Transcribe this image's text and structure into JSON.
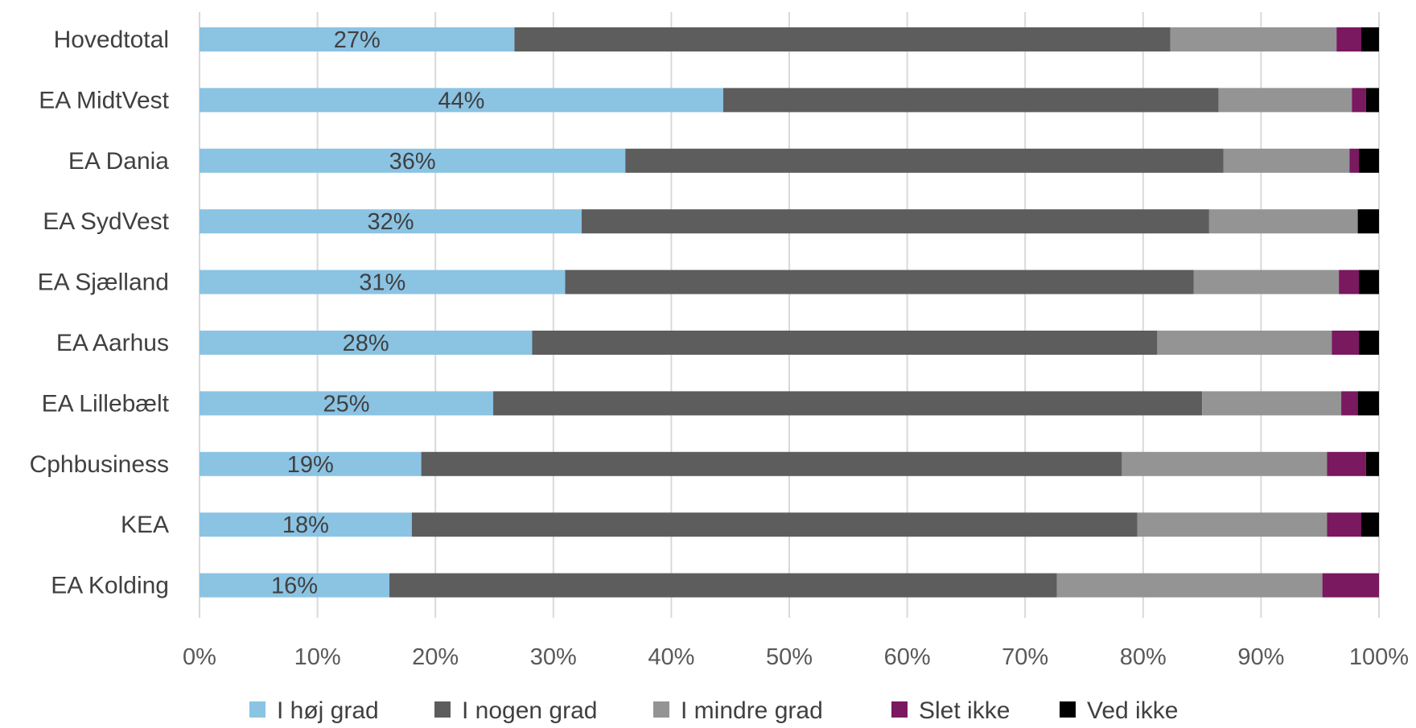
{
  "chart_data": {
    "type": "bar",
    "orientation": "horizontal",
    "stacked": true,
    "percent_stacked": true,
    "categories": [
      "Hovedtotal",
      "EA MidtVest",
      "EA Dania",
      "EA SydVest",
      "EA Sjælland",
      "EA Aarhus",
      "EA Lillebælt",
      "Cphbusiness",
      "KEA",
      "EA Kolding"
    ],
    "series": [
      {
        "name": "I høj grad",
        "color": "#8BC3E3",
        "values": [
          26.7,
          44.4,
          36.1,
          32.4,
          31.0,
          28.2,
          24.9,
          18.8,
          18.0,
          16.1
        ]
      },
      {
        "name": "I nogen grad",
        "color": "#5D5D5D",
        "values": [
          55.6,
          42.0,
          50.7,
          53.2,
          53.3,
          53.0,
          60.1,
          59.4,
          61.5,
          56.6
        ]
      },
      {
        "name": "I mindre grad",
        "color": "#949494",
        "values": [
          14.1,
          11.3,
          10.7,
          12.6,
          12.3,
          14.8,
          11.8,
          17.4,
          16.1,
          22.5
        ]
      },
      {
        "name": "Slet ikke",
        "color": "#7A1860",
        "values": [
          2.1,
          1.2,
          0.8,
          0.0,
          1.7,
          2.3,
          1.4,
          3.3,
          2.9,
          4.8
        ]
      },
      {
        "name": "Ved ikke",
        "color": "#000000",
        "values": [
          1.5,
          1.1,
          1.7,
          1.8,
          1.7,
          1.7,
          1.8,
          1.1,
          1.5,
          0.0
        ]
      }
    ],
    "data_labels": [
      "27%",
      "44%",
      "36%",
      "32%",
      "31%",
      "28%",
      "25%",
      "19%",
      "18%",
      "16%"
    ],
    "data_labels_series": "I høj grad",
    "xlim": [
      0,
      100
    ],
    "xticks": [
      "0%",
      "10%",
      "20%",
      "30%",
      "40%",
      "50%",
      "60%",
      "70%",
      "80%",
      "90%",
      "100%"
    ],
    "title": "",
    "xlabel": "",
    "ylabel": "",
    "grid": "vertical",
    "legend_position": "bottom"
  }
}
